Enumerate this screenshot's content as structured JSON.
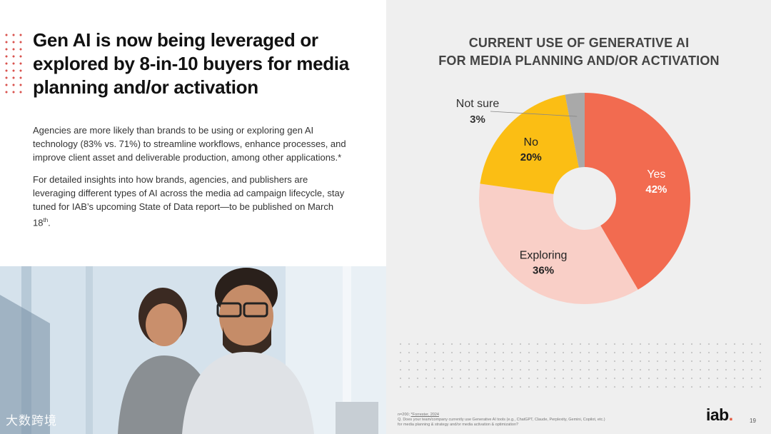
{
  "headline": "Gen AI is now being leveraged or explored by 8-in-10 buyers for media planning and/or activation",
  "body": {
    "p1": "Agencies are more likely than brands to be using or exploring gen AI technology (83% vs. 71%) to streamline workflows, enhance processes, and improve client asset and deliverable production, among other applications.*",
    "p2_main": "For detailed insights into how brands, agencies, and publishers are leveraging different types of AI across the media ad campaign lifecycle, stay tuned for IAB’s upcoming State of Data report—to be published on March 18",
    "p2_sup": "th",
    "p2_end": "."
  },
  "watermark": "大数跨境",
  "chart_data": {
    "type": "pie",
    "donut": true,
    "title": "CURRENT USE OF GENERATIVE AI FOR MEDIA PLANNING AND/OR ACTIVATION",
    "title_lines": [
      "CURRENT USE OF GENERATIVE AI",
      "FOR MEDIA PLANNING AND/OR ACTIVATION"
    ],
    "slices": [
      {
        "label": "Yes",
        "value": 42,
        "display": "42%",
        "color": "#f26b50",
        "text_color": "#ffffff"
      },
      {
        "label": "Exploring",
        "value": 36,
        "display": "36%",
        "color": "#f9cfc7",
        "text_color": "#222222"
      },
      {
        "label": "No",
        "value": 20,
        "display": "20%",
        "color": "#fbbe14",
        "text_color": "#222222"
      },
      {
        "label": "Not sure",
        "value": 3,
        "display": "3%",
        "color": "#a9a9a9",
        "text_color": "#333333"
      }
    ]
  },
  "footnote": {
    "line1_prefix": "n=200; ",
    "line1_source": "*Forrester, 2024",
    "line2": "Q. Does your team/company currently use Generative AI tools (e.g., ChatGPT, Claude, Perplexity, Gemini, Copilot, etc.)",
    "line3": "for media planning & strategy and/or media activation & optimization?"
  },
  "logo": {
    "text": "iab",
    "dot": "."
  },
  "page_number": "19"
}
